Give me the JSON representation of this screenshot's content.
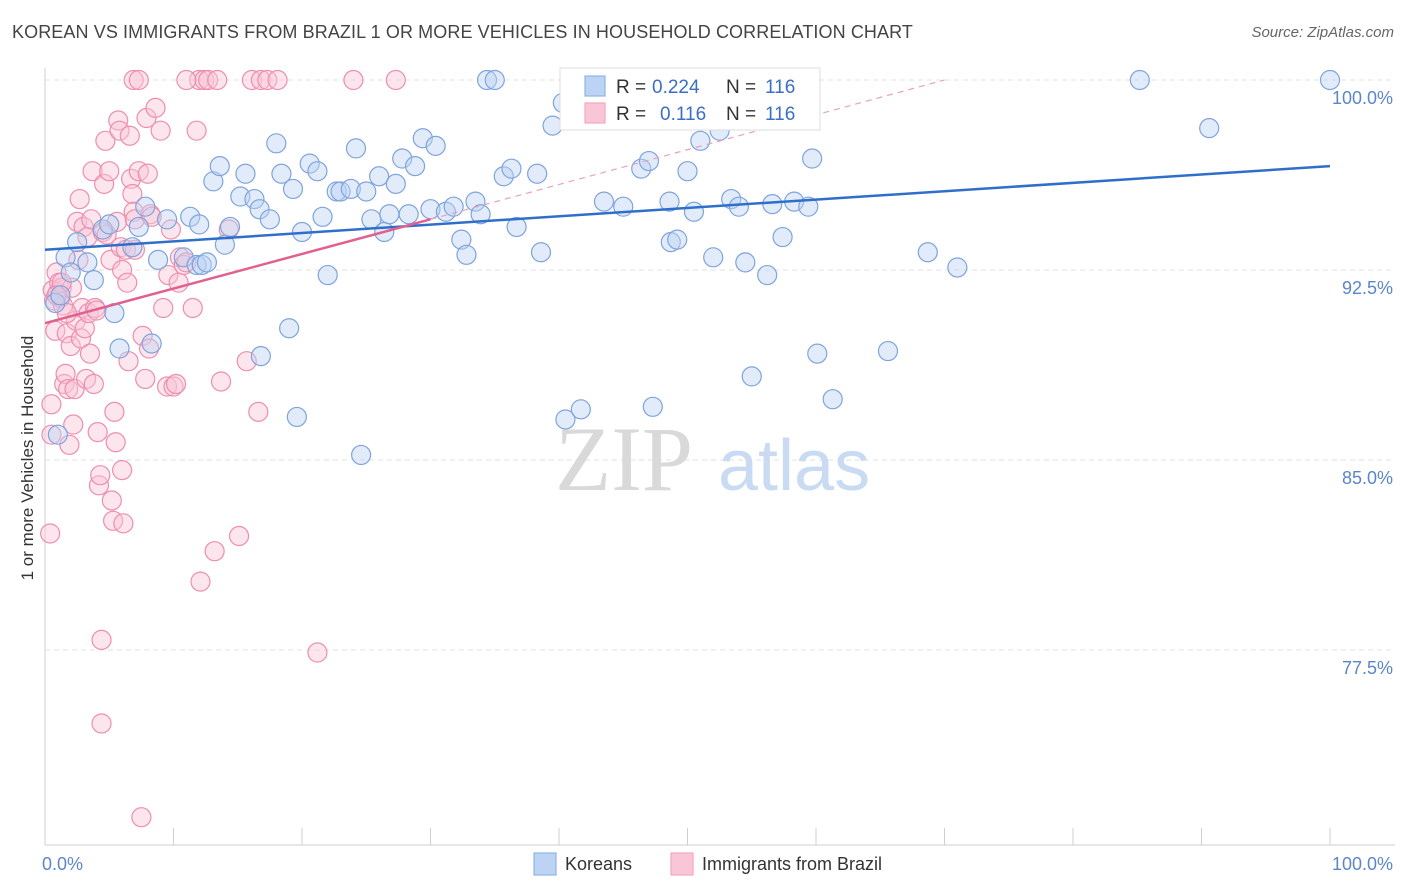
{
  "title": "KOREAN VS IMMIGRANTS FROM BRAZIL 1 OR MORE VEHICLES IN HOUSEHOLD CORRELATION CHART",
  "source": "Source: ZipAtlas.com",
  "watermark": {
    "zip": "ZIP",
    "atlas": "atlas"
  },
  "chart_data": {
    "type": "scatter",
    "title": "KOREAN VS IMMIGRANTS FROM BRAZIL 1 OR MORE VEHICLES IN HOUSEHOLD CORRELATION CHART",
    "xlabel": "",
    "ylabel": "1 or more Vehicles in Household",
    "xlim": [
      0,
      100
    ],
    "ylim": [
      70.5,
      101.5
    ],
    "x_tick_labels": [
      "0.0%",
      "100.0%"
    ],
    "y_ticks": [
      {
        "value": 100,
        "label": "100.0%"
      },
      {
        "value": 92.5,
        "label": "92.5%"
      },
      {
        "value": 85,
        "label": "85.0%"
      },
      {
        "value": 77.5,
        "label": "77.5%"
      }
    ],
    "grid": true,
    "legend_placement": "top-center",
    "series": [
      {
        "name": "Koreans",
        "color": "#8fb3e8",
        "line_color": "#2f6fcb",
        "r_label": "R =",
        "r_value": "0.224",
        "n_label": "N =",
        "n_value": "116",
        "trend": {
          "x": [
            0,
            100
          ],
          "y": [
            93.3,
            96.6
          ],
          "style": "solid"
        },
        "points": [
          [
            0.8,
            91.2
          ],
          [
            1.0,
            86.0
          ],
          [
            1.2,
            91.5
          ],
          [
            1.6,
            93.0
          ],
          [
            2.0,
            92.4
          ],
          [
            2.5,
            93.6
          ],
          [
            3.3,
            92.8
          ],
          [
            3.8,
            92.1
          ],
          [
            4.5,
            94.1
          ],
          [
            5.0,
            94.3
          ],
          [
            5.4,
            90.8
          ],
          [
            5.8,
            89.4
          ],
          [
            6.8,
            93.4
          ],
          [
            7.3,
            94.2
          ],
          [
            7.8,
            95.0
          ],
          [
            8.3,
            89.6
          ],
          [
            8.8,
            92.9
          ],
          [
            9.5,
            94.5
          ],
          [
            10.8,
            93.0
          ],
          [
            11.3,
            94.6
          ],
          [
            11.8,
            92.7
          ],
          [
            12.0,
            94.3
          ],
          [
            12.2,
            92.7
          ],
          [
            12.6,
            92.8
          ],
          [
            13.1,
            96.0
          ],
          [
            13.6,
            96.6
          ],
          [
            14.0,
            93.5
          ],
          [
            14.4,
            94.2
          ],
          [
            15.2,
            95.4
          ],
          [
            15.6,
            96.3
          ],
          [
            16.3,
            95.3
          ],
          [
            16.7,
            94.9
          ],
          [
            16.8,
            89.1
          ],
          [
            17.5,
            94.5
          ],
          [
            18.0,
            97.5
          ],
          [
            18.4,
            96.3
          ],
          [
            19.0,
            90.2
          ],
          [
            19.3,
            95.7
          ],
          [
            19.6,
            86.7
          ],
          [
            20.0,
            94.0
          ],
          [
            20.6,
            96.7
          ],
          [
            21.2,
            96.4
          ],
          [
            21.6,
            94.6
          ],
          [
            22.0,
            92.3
          ],
          [
            22.7,
            95.6
          ],
          [
            23.0,
            95.6
          ],
          [
            23.8,
            95.7
          ],
          [
            24.2,
            97.3
          ],
          [
            24.6,
            85.2
          ],
          [
            25.0,
            95.6
          ],
          [
            25.4,
            94.5
          ],
          [
            26.0,
            96.2
          ],
          [
            26.4,
            94.0
          ],
          [
            26.8,
            94.7
          ],
          [
            27.3,
            95.9
          ],
          [
            27.8,
            96.9
          ],
          [
            28.3,
            94.7
          ],
          [
            28.8,
            96.6
          ],
          [
            29.4,
            97.7
          ],
          [
            30.0,
            94.9
          ],
          [
            30.4,
            97.4
          ],
          [
            31.2,
            94.8
          ],
          [
            31.8,
            95.0
          ],
          [
            32.4,
            93.7
          ],
          [
            32.8,
            93.1
          ],
          [
            33.5,
            95.2
          ],
          [
            33.9,
            94.7
          ],
          [
            34.4,
            100.0
          ],
          [
            35.0,
            100.0
          ],
          [
            35.7,
            96.2
          ],
          [
            36.3,
            96.5
          ],
          [
            36.7,
            94.2
          ],
          [
            38.3,
            96.3
          ],
          [
            38.6,
            93.2
          ],
          [
            39.5,
            98.2
          ],
          [
            40.3,
            99.1
          ],
          [
            40.5,
            86.6
          ],
          [
            41.0,
            100.0
          ],
          [
            41.7,
            87.0
          ],
          [
            42.4,
            98.6
          ],
          [
            43.5,
            95.2
          ],
          [
            45.0,
            95.0
          ],
          [
            45.8,
            99.1
          ],
          [
            45.9,
            100.0
          ],
          [
            46.4,
            96.5
          ],
          [
            47.0,
            96.8
          ],
          [
            47.3,
            87.1
          ],
          [
            48.0,
            98.4
          ],
          [
            48.6,
            95.2
          ],
          [
            48.7,
            93.6
          ],
          [
            49.2,
            93.7
          ],
          [
            50.0,
            96.4
          ],
          [
            50.5,
            94.8
          ],
          [
            51.0,
            97.6
          ],
          [
            52.0,
            93.0
          ],
          [
            52.5,
            98.0
          ],
          [
            53.4,
            95.3
          ],
          [
            54.0,
            95.0
          ],
          [
            54.5,
            92.8
          ],
          [
            55.0,
            88.3
          ],
          [
            56.2,
            92.3
          ],
          [
            56.6,
            95.1
          ],
          [
            57.4,
            93.8
          ],
          [
            58.3,
            95.2
          ],
          [
            59.4,
            95.0
          ],
          [
            59.7,
            96.9
          ],
          [
            60.1,
            89.2
          ],
          [
            61.3,
            87.4
          ],
          [
            65.6,
            89.3
          ],
          [
            68.7,
            93.2
          ],
          [
            71.0,
            92.6
          ],
          [
            85.2,
            100.0
          ],
          [
            90.6,
            98.1
          ],
          [
            100.0,
            100.0
          ]
        ]
      },
      {
        "name": "Immigrants from Brazil",
        "color": "#f5a6c0",
        "line_color": "#e06090",
        "r_label": "R =",
        "r_value": "0.116",
        "n_label": "N =",
        "n_value": "116",
        "trend": {
          "x": [
            0,
            30
          ],
          "y": [
            90.4,
            94.5
          ],
          "style": "solid"
        },
        "trend_extension": {
          "x": [
            30,
            70
          ],
          "y": [
            94.5,
            100.0
          ],
          "style": "dashed"
        },
        "points": [
          [
            0.4,
            82.1
          ],
          [
            0.5,
            86.0
          ],
          [
            0.5,
            87.2
          ],
          [
            0.6,
            91.7
          ],
          [
            0.7,
            91.3
          ],
          [
            0.8,
            90.1
          ],
          [
            0.9,
            92.4
          ],
          [
            1.0,
            91.6
          ],
          [
            1.1,
            92.0
          ],
          [
            1.2,
            91.4
          ],
          [
            1.3,
            91.8
          ],
          [
            1.4,
            91.1
          ],
          [
            1.5,
            88.0
          ],
          [
            1.6,
            88.4
          ],
          [
            1.7,
            90.0
          ],
          [
            1.8,
            87.8
          ],
          [
            1.9,
            85.6
          ],
          [
            2.0,
            89.5
          ],
          [
            2.1,
            91.8
          ],
          [
            2.2,
            86.4
          ],
          [
            2.3,
            87.8
          ],
          [
            2.4,
            90.5
          ],
          [
            2.5,
            94.4
          ],
          [
            2.6,
            92.9
          ],
          [
            2.7,
            95.3
          ],
          [
            2.8,
            89.8
          ],
          [
            2.9,
            91.0
          ],
          [
            3.0,
            94.2
          ],
          [
            3.1,
            90.2
          ],
          [
            3.2,
            88.2
          ],
          [
            3.3,
            93.8
          ],
          [
            3.4,
            90.8
          ],
          [
            3.5,
            89.2
          ],
          [
            3.6,
            94.5
          ],
          [
            3.7,
            96.4
          ],
          [
            3.8,
            88.0
          ],
          [
            3.9,
            91.0
          ],
          [
            4.0,
            90.9
          ],
          [
            4.1,
            86.1
          ],
          [
            4.2,
            84.0
          ],
          [
            4.3,
            84.4
          ],
          [
            4.4,
            77.9
          ],
          [
            4.4,
            74.6
          ],
          [
            4.5,
            94.0
          ],
          [
            4.6,
            95.9
          ],
          [
            4.7,
            97.6
          ],
          [
            4.8,
            93.9
          ],
          [
            5.0,
            96.4
          ],
          [
            5.1,
            92.9
          ],
          [
            5.2,
            83.4
          ],
          [
            5.3,
            82.6
          ],
          [
            5.4,
            86.9
          ],
          [
            5.5,
            85.7
          ],
          [
            5.6,
            94.4
          ],
          [
            5.7,
            98.4
          ],
          [
            5.8,
            98.0
          ],
          [
            5.9,
            93.4
          ],
          [
            6.0,
            92.5
          ],
          [
            6.0,
            84.6
          ],
          [
            6.1,
            82.5
          ],
          [
            6.3,
            93.3
          ],
          [
            6.4,
            92.0
          ],
          [
            6.5,
            88.9
          ],
          [
            6.6,
            97.8
          ],
          [
            6.7,
            96.1
          ],
          [
            6.8,
            95.5
          ],
          [
            6.9,
            94.8
          ],
          [
            7.0,
            94.5
          ],
          [
            7.0,
            93.3
          ],
          [
            7.3,
            96.4
          ],
          [
            7.5,
            70.9
          ],
          [
            7.6,
            89.9
          ],
          [
            7.8,
            88.2
          ],
          [
            7.9,
            98.5
          ],
          [
            8.0,
            96.3
          ],
          [
            8.1,
            89.4
          ],
          [
            8.2,
            94.7
          ],
          [
            8.3,
            94.6
          ],
          [
            8.6,
            98.9
          ],
          [
            9.0,
            98.0
          ],
          [
            9.2,
            91.0
          ],
          [
            9.5,
            87.9
          ],
          [
            9.6,
            92.3
          ],
          [
            9.8,
            94.1
          ],
          [
            10.0,
            87.9
          ],
          [
            10.2,
            88.0
          ],
          [
            10.4,
            92.0
          ],
          [
            10.5,
            93.0
          ],
          [
            10.8,
            92.7
          ],
          [
            11.0,
            92.8
          ],
          [
            11.5,
            91.0
          ],
          [
            11.8,
            98.0
          ],
          [
            12.0,
            100.0
          ],
          [
            12.1,
            80.2
          ],
          [
            12.4,
            100.0
          ],
          [
            12.7,
            100.0
          ],
          [
            13.2,
            81.4
          ],
          [
            13.7,
            88.1
          ],
          [
            14.3,
            94.1
          ],
          [
            15.1,
            82.0
          ],
          [
            15.7,
            88.9
          ],
          [
            16.1,
            100.0
          ],
          [
            16.6,
            86.9
          ],
          [
            16.8,
            100.0
          ],
          [
            17.3,
            100.0
          ],
          [
            18.1,
            100.0
          ],
          [
            21.2,
            77.4
          ],
          [
            24.0,
            100.0
          ],
          [
            27.3,
            100.0
          ],
          [
            6.9,
            100.0
          ],
          [
            7.3,
            100.0
          ],
          [
            11.0,
            100.0
          ],
          [
            13.4,
            100.0
          ],
          [
            1.3,
            92.0
          ],
          [
            0.9,
            91.5
          ],
          [
            1.7,
            90.8
          ]
        ]
      }
    ]
  }
}
